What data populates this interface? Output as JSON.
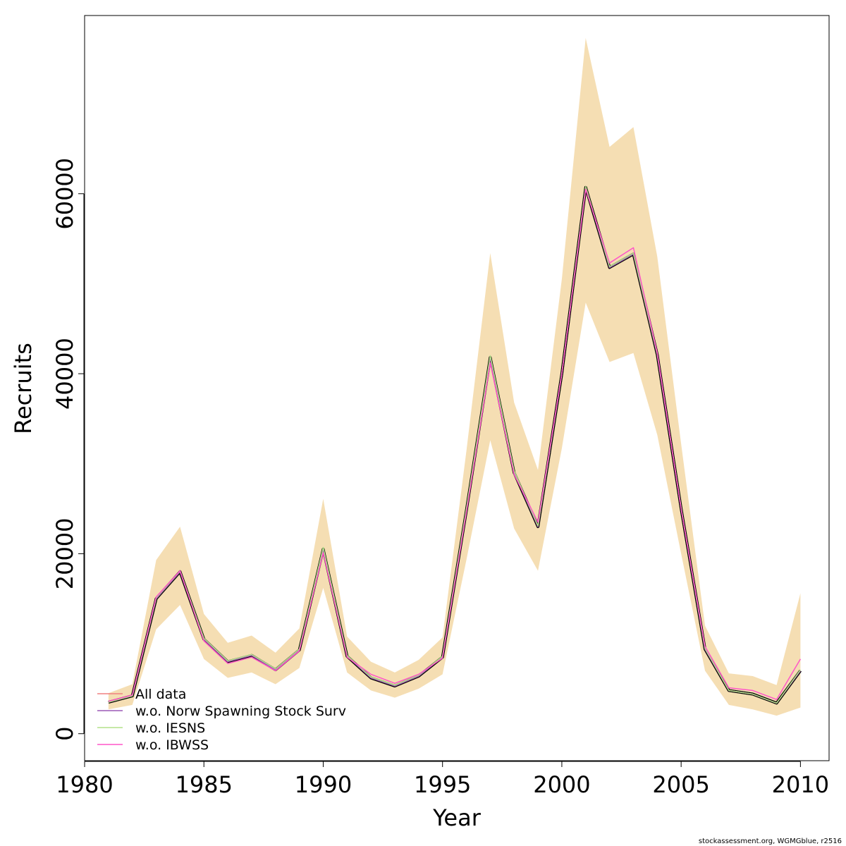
{
  "chart_data": {
    "type": "line",
    "title": "",
    "xlabel": "Year",
    "ylabel": "Recruits",
    "xlim": [
      1980,
      2011.2
    ],
    "ylim": [
      -3000,
      79800
    ],
    "x_ticks": [
      1980,
      1985,
      1990,
      1995,
      2000,
      2005,
      2010
    ],
    "y_ticks": [
      0,
      20000,
      40000,
      60000
    ],
    "x_tick_labels": [
      "1980",
      "1985",
      "1990",
      "1995",
      "2000",
      "2005",
      "2010"
    ],
    "y_tick_labels": [
      "0",
      "20000",
      "40000",
      "60000"
    ],
    "grid": false,
    "legend_position": "bottom-left",
    "x": [
      1981,
      1982,
      1983,
      1984,
      1985,
      1986,
      1987,
      1988,
      1989,
      1990,
      1991,
      1992,
      1993,
      1994,
      1995,
      1996,
      1997,
      1998,
      1999,
      2000,
      2001,
      2002,
      2003,
      2004,
      2005,
      2006,
      2007,
      2008,
      2009,
      2010
    ],
    "confidence_band": {
      "color": "#f5deb3",
      "lower": [
        2700,
        3200,
        11600,
        14300,
        8300,
        6200,
        6800,
        5500,
        7300,
        16200,
        6800,
        4800,
        4000,
        5000,
        6600,
        19300,
        32600,
        22800,
        18100,
        31700,
        47900,
        41300,
        42300,
        33200,
        20000,
        7000,
        3200,
        2700,
        2000,
        2900
      ],
      "upper": [
        4500,
        5500,
        19300,
        23000,
        13300,
        10100,
        10900,
        9000,
        11700,
        26100,
        10800,
        8000,
        6800,
        8200,
        10700,
        31400,
        53400,
        36800,
        29300,
        50500,
        77300,
        65200,
        67400,
        53000,
        32200,
        12000,
        6700,
        6400,
        5400,
        15600
      ]
    },
    "series": [
      {
        "name": "All data",
        "color": "#f08080",
        "values": [
          3500,
          4200,
          15000,
          18000,
          10500,
          8000,
          8700,
          7100,
          9300,
          20500,
          8600,
          6200,
          5300,
          6400,
          8500,
          24800,
          41800,
          29000,
          23000,
          40000,
          60700,
          51800,
          53300,
          42100,
          25000,
          9400,
          4800,
          4400,
          3400,
          7000
        ]
      },
      {
        "name": "w.o. Norw Spawning Stock Surv",
        "color": "#9b59b6",
        "values": [
          3500,
          4200,
          15000,
          18000,
          10500,
          8000,
          8700,
          7100,
          9300,
          20500,
          8600,
          6200,
          5300,
          6400,
          8500,
          24800,
          41800,
          29000,
          23000,
          40000,
          60700,
          51800,
          53300,
          42100,
          25000,
          9400,
          4800,
          4400,
          3400,
          7000
        ]
      },
      {
        "name": "w.o. IESNS",
        "color": "#b4e08a",
        "values": [
          3500,
          4200,
          15100,
          18100,
          10600,
          8100,
          8800,
          7200,
          9400,
          20700,
          8700,
          6300,
          5400,
          6500,
          8600,
          25000,
          42000,
          29200,
          23100,
          40100,
          60800,
          51900,
          53400,
          42200,
          25100,
          9500,
          4800,
          4400,
          3400,
          7100
        ]
      },
      {
        "name": "w.o. IBWSS",
        "color": "#ff55c8",
        "values": [
          3600,
          4300,
          15200,
          18100,
          10300,
          7800,
          8500,
          7000,
          9200,
          20100,
          8500,
          6600,
          5600,
          6600,
          8400,
          24600,
          41200,
          28800,
          23500,
          40000,
          60500,
          52300,
          54000,
          42300,
          25000,
          9700,
          5100,
          4800,
          3800,
          8300
        ]
      }
    ],
    "main_line": {
      "color": "#000000",
      "values": [
        3500,
        4200,
        15000,
        18000,
        10500,
        8000,
        8700,
        7100,
        9300,
        20500,
        8600,
        6200,
        5300,
        6400,
        8500,
        24800,
        41800,
        29000,
        23000,
        40000,
        60700,
        51800,
        53300,
        42100,
        25000,
        9400,
        4800,
        4400,
        3400,
        7000
      ]
    }
  },
  "footer": "stockassessment.org, WGMGblue, r2516"
}
